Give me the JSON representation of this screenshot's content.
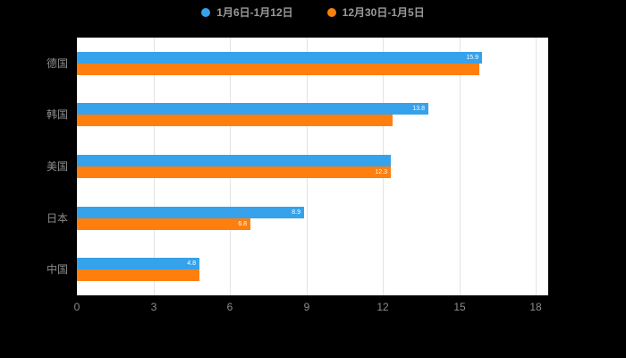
{
  "colors": {
    "page_background": "#000000",
    "plot_background": "#ffffff",
    "grid_line": "#e3e3e3",
    "axis_label": "#8c8c8c",
    "category_label": "#8c8c8c",
    "bar_label": "#ffffff",
    "series1": "#36a2eb",
    "series2": "#ff7f0e"
  },
  "legend": {
    "items": [
      {
        "label": "1月6日-1月12日",
        "color": "#36a2eb"
      },
      {
        "label": "12月30日-1月5日",
        "color": "#ff7f0e"
      }
    ]
  },
  "chart_data": {
    "type": "bar",
    "orientation": "horizontal",
    "title": "",
    "categories": [
      "德国",
      "韩国",
      "美国",
      "日本",
      "中国"
    ],
    "series": [
      {
        "name": "1月6日-1月12日",
        "color": "#36a2eb",
        "values": [
          15.9,
          13.8,
          12.3,
          8.9,
          4.8
        ],
        "data_labels": [
          "15.9",
          "13.8",
          "",
          "8.9",
          "4.8"
        ]
      },
      {
        "name": "12月30日-1月5日",
        "color": "#ff7f0e",
        "values": [
          15.8,
          12.4,
          12.3,
          6.8,
          4.8
        ],
        "data_labels": [
          "",
          "",
          "12.3",
          "6.8",
          ""
        ]
      }
    ],
    "xlim": [
      0,
      18
    ],
    "x_ticks": [
      "0",
      "3",
      "6",
      "9",
      "12",
      "15",
      "18"
    ],
    "grid": true,
    "legend_position": "top"
  }
}
